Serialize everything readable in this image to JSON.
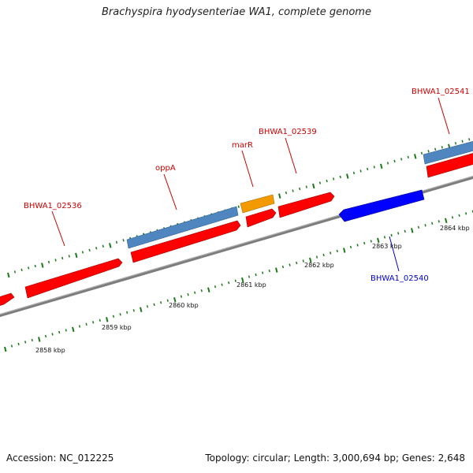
{
  "title": "Brachyspira hyodysenteriae WA1, complete genome",
  "footer": {
    "accession": "Accession: NC_012225",
    "summary": "Topology: circular; Length: 3,000,694 bp; Genes: 2,648"
  },
  "colors": {
    "forward_gene": "#ff0000",
    "reverse_gene": "#0000ff",
    "feature_blue": "#4f86c0",
    "feature_orange": "#f29a00",
    "backbone": "#888888",
    "tick": "#1a7a1a",
    "label_forward": "#cc0000",
    "label_reverse": "#0000cc"
  },
  "ticks": [
    "2858 kbp",
    "2859 kbp",
    "2860 kbp",
    "2861 kbp",
    "2862 kbp",
    "2863 kbp",
    "2864 kbp"
  ],
  "gene_labels": [
    {
      "text": "BHWA1_02536",
      "strand": "forward"
    },
    {
      "text": "oppA",
      "strand": "forward"
    },
    {
      "text": "marR",
      "strand": "forward"
    },
    {
      "text": "BHWA1_02539",
      "strand": "forward"
    },
    {
      "text": "BHWA1_02541",
      "strand": "forward"
    },
    {
      "text": "BHWA1_02540",
      "strand": "reverse"
    }
  ]
}
